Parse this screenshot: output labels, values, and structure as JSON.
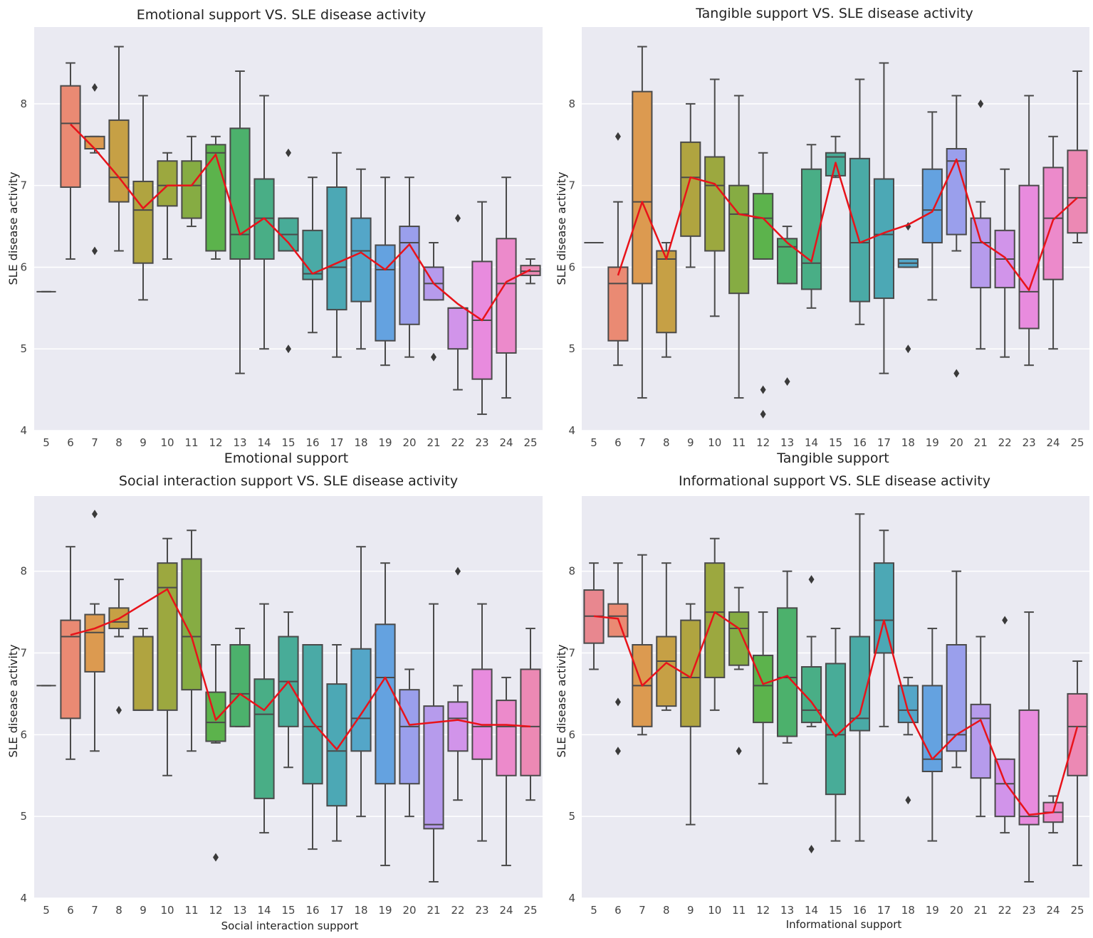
{
  "box_fields": [
    "category",
    "whisker_low",
    "q1",
    "median",
    "q3",
    "whisker_high"
  ],
  "chart_data": [
    {
      "type": "box",
      "title": "Emotional support VS. SLE disease activity",
      "xlabel": "Emotional support",
      "ylabel": "SLE disease activity",
      "categories": [
        5,
        6,
        7,
        8,
        9,
        10,
        11,
        12,
        13,
        14,
        15,
        16,
        17,
        18,
        19,
        20,
        21,
        22,
        23,
        24,
        25
      ],
      "yticks": [
        4,
        5,
        6,
        7,
        8
      ],
      "ylim": [
        4,
        8.94
      ],
      "grid": true,
      "boxes": [
        [
          5,
          5.7,
          5.7,
          5.7,
          5.7,
          5.7
        ],
        [
          6,
          6.1,
          6.98,
          7.76,
          8.22,
          8.5
        ],
        [
          7,
          7.4,
          7.45,
          7.45,
          7.6,
          7.6
        ],
        [
          8,
          6.2,
          6.8,
          7.1,
          7.8,
          8.7
        ],
        [
          9,
          5.6,
          6.05,
          6.7,
          7.05,
          8.1
        ],
        [
          10,
          6.1,
          6.75,
          7.0,
          7.3,
          7.4
        ],
        [
          11,
          6.5,
          6.6,
          7.0,
          7.3,
          7.6
        ],
        [
          12,
          6.1,
          6.2,
          7.4,
          7.5,
          7.6
        ],
        [
          13,
          4.7,
          6.1,
          6.4,
          7.7,
          8.4
        ],
        [
          14,
          5.0,
          6.1,
          6.6,
          7.08,
          8.1
        ],
        [
          15,
          6.2,
          6.2,
          6.4,
          6.6,
          6.6
        ],
        [
          16,
          5.2,
          5.85,
          5.92,
          6.45,
          7.1
        ],
        [
          17,
          4.9,
          5.48,
          6.0,
          6.98,
          7.4
        ],
        [
          18,
          5.0,
          5.58,
          6.2,
          6.6,
          7.2
        ],
        [
          19,
          4.8,
          5.1,
          5.97,
          6.27,
          7.1
        ],
        [
          20,
          4.9,
          5.3,
          6.3,
          6.5,
          7.1
        ],
        [
          21,
          5.6,
          5.6,
          5.8,
          6.0,
          6.3
        ],
        [
          22,
          4.5,
          5.0,
          5.5,
          5.5,
          5.5
        ],
        [
          23,
          4.2,
          4.63,
          5.35,
          6.07,
          6.8
        ],
        [
          24,
          4.4,
          4.95,
          5.8,
          6.35,
          7.1
        ],
        [
          25,
          5.8,
          5.9,
          5.95,
          6.02,
          6.1
        ]
      ],
      "outliers": [
        [
          7,
          8.2
        ],
        [
          7,
          6.2
        ],
        [
          15,
          7.4
        ],
        [
          15,
          5.0
        ],
        [
          21,
          4.9
        ],
        [
          22,
          6.6
        ]
      ],
      "mean_line": [
        null,
        7.75,
        7.45,
        7.1,
        6.72,
        7.0,
        7.0,
        7.38,
        6.4,
        6.6,
        6.3,
        5.92,
        6.05,
        6.18,
        5.97,
        6.28,
        5.8,
        5.55,
        5.35,
        5.82,
        5.97
      ]
    },
    {
      "type": "box",
      "title": "Tangible support VS. SLE disease activity",
      "xlabel": "Tangible support",
      "ylabel": "SLE disease activity",
      "categories": [
        5,
        6,
        7,
        8,
        9,
        10,
        11,
        12,
        13,
        14,
        15,
        16,
        17,
        18,
        19,
        20,
        21,
        22,
        23,
        24,
        25
      ],
      "yticks": [
        4,
        5,
        6,
        7,
        8
      ],
      "ylim": [
        4,
        8.94
      ],
      "grid": true,
      "boxes": [
        [
          5,
          6.3,
          6.3,
          6.3,
          6.3,
          6.3
        ],
        [
          6,
          4.8,
          5.1,
          5.8,
          6.0,
          6.8
        ],
        [
          7,
          4.4,
          5.8,
          6.8,
          8.15,
          8.7
        ],
        [
          8,
          4.9,
          5.2,
          6.1,
          6.2,
          6.3
        ],
        [
          9,
          6.0,
          6.38,
          7.1,
          7.53,
          8.0
        ],
        [
          10,
          5.4,
          6.2,
          7.0,
          7.35,
          8.3
        ],
        [
          11,
          4.4,
          5.68,
          6.65,
          7.0,
          8.1
        ],
        [
          12,
          6.1,
          6.1,
          6.6,
          6.9,
          7.4
        ],
        [
          13,
          5.8,
          5.8,
          6.25,
          6.35,
          6.5
        ],
        [
          14,
          5.5,
          5.73,
          6.05,
          7.2,
          7.5
        ],
        [
          15,
          7.1,
          7.12,
          7.35,
          7.4,
          7.6
        ],
        [
          16,
          5.3,
          5.58,
          6.3,
          7.33,
          8.3
        ],
        [
          17,
          4.7,
          5.62,
          6.4,
          7.08,
          8.5
        ],
        [
          18,
          6.0,
          6.0,
          6.05,
          6.1,
          6.1
        ],
        [
          19,
          5.6,
          6.3,
          6.7,
          7.2,
          7.9
        ],
        [
          20,
          6.2,
          6.4,
          7.3,
          7.45,
          8.1
        ],
        [
          21,
          5.0,
          5.75,
          6.3,
          6.6,
          6.8
        ],
        [
          22,
          4.9,
          5.75,
          6.1,
          6.45,
          7.2
        ],
        [
          23,
          4.8,
          5.25,
          5.7,
          7.0,
          8.1
        ],
        [
          24,
          5.0,
          5.85,
          6.6,
          7.22,
          7.6
        ],
        [
          25,
          6.3,
          6.42,
          6.85,
          7.43,
          8.4
        ]
      ],
      "outliers": [
        [
          6,
          7.6
        ],
        [
          12,
          4.5
        ],
        [
          12,
          4.2
        ],
        [
          13,
          4.6
        ],
        [
          18,
          6.5
        ],
        [
          18,
          5.0
        ],
        [
          20,
          4.7
        ],
        [
          21,
          8.0
        ]
      ],
      "mean_line": [
        null,
        5.9,
        6.8,
        6.1,
        7.1,
        7.02,
        6.65,
        6.6,
        6.3,
        6.07,
        7.28,
        6.3,
        6.42,
        6.52,
        6.68,
        7.32,
        6.32,
        6.12,
        5.72,
        6.58,
        6.85
      ]
    },
    {
      "type": "box",
      "title": "Social interaction support VS. SLE disease activity",
      "xlabel": "Social interaction support",
      "ylabel": "SLE disease activity",
      "categories": [
        5,
        6,
        7,
        8,
        9,
        10,
        11,
        12,
        13,
        14,
        15,
        16,
        17,
        18,
        19,
        20,
        21,
        22,
        23,
        24,
        25
      ],
      "yticks": [
        4,
        5,
        6,
        7,
        8
      ],
      "ylim": [
        4,
        8.92
      ],
      "grid": true,
      "boxes": [
        [
          5,
          6.6,
          6.6,
          6.6,
          6.6,
          6.6
        ],
        [
          6,
          5.7,
          6.2,
          7.2,
          7.4,
          8.3
        ],
        [
          7,
          5.8,
          6.77,
          7.25,
          7.47,
          7.6
        ],
        [
          8,
          7.2,
          7.3,
          7.38,
          7.55,
          7.9
        ],
        [
          9,
          6.3,
          6.3,
          6.3,
          7.2,
          7.3
        ],
        [
          10,
          5.5,
          6.3,
          7.8,
          8.1,
          8.4
        ],
        [
          11,
          5.8,
          6.55,
          7.2,
          8.15,
          8.5
        ],
        [
          12,
          5.9,
          5.92,
          6.15,
          6.52,
          7.1
        ],
        [
          13,
          6.1,
          6.1,
          6.5,
          7.1,
          7.3
        ],
        [
          14,
          4.8,
          5.22,
          6.25,
          6.68,
          7.6
        ],
        [
          15,
          5.6,
          6.1,
          6.65,
          7.2,
          7.5
        ],
        [
          16,
          4.6,
          5.4,
          6.1,
          7.1,
          7.1
        ],
        [
          17,
          4.7,
          5.13,
          5.8,
          6.62,
          7.1
        ],
        [
          18,
          5.0,
          5.8,
          6.2,
          7.05,
          8.3
        ],
        [
          19,
          4.4,
          5.4,
          6.7,
          7.35,
          8.1
        ],
        [
          20,
          5.0,
          5.4,
          6.1,
          6.55,
          6.8
        ],
        [
          21,
          4.2,
          4.85,
          4.9,
          6.35,
          7.6
        ],
        [
          22,
          5.2,
          5.8,
          6.2,
          6.4,
          6.6
        ],
        [
          23,
          4.7,
          5.7,
          6.1,
          6.8,
          7.6
        ],
        [
          24,
          4.4,
          5.5,
          6.1,
          6.42,
          6.7
        ],
        [
          25,
          5.2,
          5.5,
          6.1,
          6.8,
          7.3
        ]
      ],
      "outliers": [
        [
          7,
          8.7
        ],
        [
          8,
          6.3
        ],
        [
          12,
          4.5
        ],
        [
          22,
          8.0
        ]
      ],
      "mean_line": [
        null,
        7.22,
        7.3,
        7.42,
        7.6,
        7.78,
        7.2,
        6.18,
        6.5,
        6.3,
        6.65,
        6.15,
        5.82,
        6.25,
        6.7,
        6.12,
        6.15,
        6.18,
        6.12,
        6.12,
        6.1
      ]
    },
    {
      "type": "box",
      "title": "Informational support VS. SLE disease activity",
      "xlabel": "Informational support",
      "ylabel": "SLE disease activity",
      "categories": [
        5,
        6,
        7,
        8,
        9,
        10,
        11,
        12,
        13,
        14,
        15,
        16,
        17,
        18,
        19,
        20,
        21,
        22,
        23,
        24,
        25
      ],
      "yticks": [
        4,
        5,
        6,
        7,
        8
      ],
      "ylim": [
        4,
        8.92
      ],
      "grid": true,
      "boxes": [
        [
          5,
          6.8,
          7.12,
          7.45,
          7.77,
          8.1
        ],
        [
          6,
          7.2,
          7.2,
          7.45,
          7.6,
          8.1
        ],
        [
          7,
          6.0,
          6.1,
          6.6,
          7.1,
          8.2
        ],
        [
          8,
          6.3,
          6.35,
          6.9,
          7.2,
          8.1
        ],
        [
          9,
          4.9,
          6.1,
          6.7,
          7.4,
          7.6
        ],
        [
          10,
          6.3,
          6.7,
          7.5,
          8.1,
          8.4
        ],
        [
          11,
          6.8,
          6.85,
          7.3,
          7.5,
          7.8
        ],
        [
          12,
          5.4,
          6.15,
          6.6,
          6.97,
          7.5
        ],
        [
          13,
          5.9,
          5.98,
          6.7,
          7.55,
          8.0
        ],
        [
          14,
          6.1,
          6.15,
          6.3,
          6.83,
          7.2
        ],
        [
          15,
          4.7,
          5.27,
          6.0,
          6.87,
          7.3
        ],
        [
          16,
          4.7,
          6.05,
          6.2,
          7.2,
          8.7
        ],
        [
          17,
          6.1,
          7.0,
          7.4,
          8.1,
          8.5
        ],
        [
          18,
          6.0,
          6.15,
          6.3,
          6.6,
          6.7
        ],
        [
          19,
          4.7,
          5.55,
          5.7,
          6.6,
          7.3
        ],
        [
          20,
          5.6,
          5.8,
          6.0,
          7.1,
          8.0
        ],
        [
          21,
          5.0,
          5.47,
          6.2,
          6.37,
          7.2
        ],
        [
          22,
          4.8,
          5.0,
          5.4,
          5.7,
          5.7
        ],
        [
          23,
          4.2,
          4.9,
          5.0,
          6.3,
          7.5
        ],
        [
          24,
          4.8,
          4.93,
          5.05,
          5.17,
          5.25
        ],
        [
          25,
          4.4,
          5.5,
          6.1,
          6.5,
          6.9
        ]
      ],
      "outliers": [
        [
          6,
          6.4
        ],
        [
          6,
          5.8
        ],
        [
          11,
          5.8
        ],
        [
          14,
          7.9
        ],
        [
          14,
          4.6
        ],
        [
          18,
          5.2
        ],
        [
          22,
          7.4
        ]
      ],
      "mean_line": [
        7.45,
        7.42,
        6.6,
        6.88,
        6.7,
        7.5,
        7.3,
        6.62,
        6.72,
        6.4,
        5.98,
        6.25,
        7.4,
        6.28,
        5.7,
        6.0,
        6.18,
        5.42,
        5.02,
        5.05,
        6.1
      ]
    }
  ],
  "colors": {
    "background": "#eaeaf2",
    "grid": "#ffffff",
    "mean_line": "#e8131a",
    "box_edge": "#4a4a4a",
    "palette": [
      "#e8878f",
      "#ea8a73",
      "#dc9a50",
      "#c6a045",
      "#b0a440",
      "#9ca83f",
      "#86ac43",
      "#5cb34c",
      "#4cb16c",
      "#49ae86",
      "#48ac98",
      "#4aaaa6",
      "#4ca8b5",
      "#54a6c8",
      "#64a2e0",
      "#9a9fec",
      "#b69bec",
      "#d194ea",
      "#e88bde",
      "#ec8acb",
      "#ec89b4"
    ]
  }
}
